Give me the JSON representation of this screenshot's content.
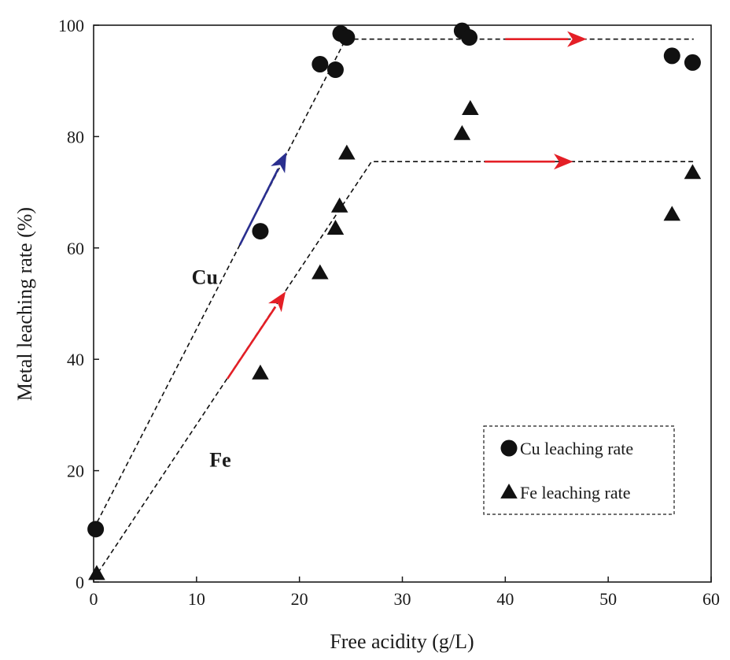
{
  "chart_data": {
    "type": "scatter",
    "xlabel": "Free acidity (g/L)",
    "ylabel": "Metal leaching rate (%)",
    "xlim": [
      0,
      60
    ],
    "ylim": [
      0,
      100
    ],
    "xticks": [
      0,
      10,
      20,
      30,
      40,
      50,
      60
    ],
    "yticks": [
      0,
      20,
      40,
      60,
      80,
      100
    ],
    "grid": false,
    "legend_position": "bottom-right",
    "series": [
      {
        "name": "Cu leaching rate",
        "marker": "circle",
        "color": "#111111",
        "points": [
          [
            0.2,
            9.5
          ],
          [
            16.2,
            63.0
          ],
          [
            22.0,
            93.0
          ],
          [
            23.5,
            92.0
          ],
          [
            24.0,
            98.5
          ],
          [
            24.6,
            97.8
          ],
          [
            35.8,
            99.0
          ],
          [
            36.5,
            97.8
          ],
          [
            56.2,
            94.5
          ],
          [
            58.2,
            93.3
          ]
        ]
      },
      {
        "name": "Fe leaching rate",
        "marker": "triangle",
        "color": "#111111",
        "points": [
          [
            0.3,
            1.5
          ],
          [
            16.2,
            37.5
          ],
          [
            22.0,
            55.5
          ],
          [
            23.5,
            63.5
          ],
          [
            23.9,
            67.5
          ],
          [
            24.6,
            77.0
          ],
          [
            35.8,
            80.5
          ],
          [
            36.6,
            85.0
          ],
          [
            56.2,
            66.0
          ],
          [
            58.2,
            73.5
          ]
        ]
      }
    ],
    "trend_lines": [
      {
        "label": "Cu",
        "color": "#111111",
        "style": "dashed",
        "points": [
          [
            0,
            9.5
          ],
          [
            24.5,
            97.5
          ],
          [
            58.3,
            97.5
          ]
        ]
      },
      {
        "label": "Fe",
        "color": "#111111",
        "style": "dashed",
        "points": [
          [
            0,
            0.5
          ],
          [
            27,
            75.5
          ],
          [
            58.3,
            75.5
          ]
        ]
      }
    ],
    "arrows": [
      {
        "color": "#2a2f8f",
        "from": [
          14.2,
          60.5
        ],
        "to": [
          18.7,
          77.0
        ]
      },
      {
        "color": "#e41f26",
        "from": [
          40.0,
          97.5
        ],
        "to": [
          47.8,
          97.5
        ]
      },
      {
        "color": "#e41f26",
        "from": [
          13.0,
          36.5
        ],
        "to": [
          18.6,
          52.0
        ]
      },
      {
        "color": "#e41f26",
        "from": [
          38.0,
          75.5
        ],
        "to": [
          46.5,
          75.5
        ]
      }
    ],
    "annotations": [
      {
        "text": "Cu",
        "x": 10.8,
        "y": 54.8
      },
      {
        "text": "Fe",
        "x": 12.3,
        "y": 22.0
      }
    ]
  }
}
